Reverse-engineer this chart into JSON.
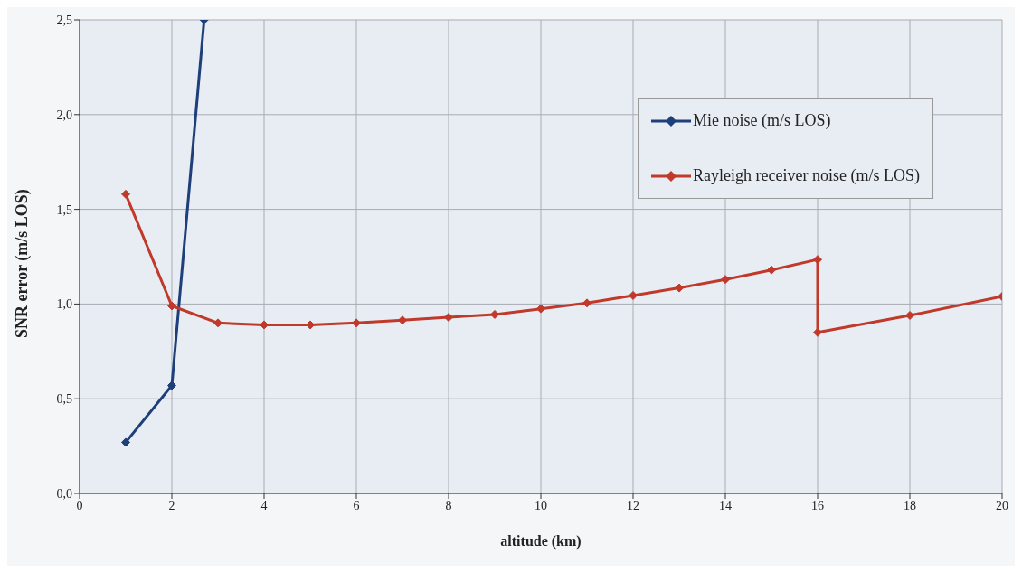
{
  "chart_data": {
    "type": "line",
    "xlabel": "altitude (km)",
    "ylabel": "SNR error (m/s LOS)",
    "xlim": [
      0,
      20
    ],
    "xticks": [
      0,
      2,
      4,
      6,
      8,
      10,
      12,
      14,
      16,
      18,
      20
    ],
    "ylim": [
      0,
      2.5
    ],
    "yticks": [
      {
        "value": 0,
        "label": "0,0"
      },
      {
        "value": 0.5,
        "label": "0,5"
      },
      {
        "value": 1,
        "label": "1,0"
      },
      {
        "value": 1.5,
        "label": "1,5"
      },
      {
        "value": 2,
        "label": "2,0"
      },
      {
        "value": 2.5,
        "label": "2,5"
      }
    ],
    "grid": true,
    "legend": "top right",
    "marker": "diamond",
    "series": [
      {
        "name": "Mie noise (m/s LOS)",
        "color": "#1f3f7a",
        "x": [
          1,
          2,
          2.7
        ],
        "values": [
          0.27,
          0.57,
          2.5
        ]
      },
      {
        "name": "Rayleigh receiver noise (m/s LOS)",
        "color": "#c0392b",
        "x": [
          1,
          2,
          3,
          4,
          5,
          6,
          7,
          8,
          9,
          10,
          11,
          12,
          13,
          14,
          15,
          16,
          16,
          18,
          20
        ],
        "values": [
          1.58,
          0.99,
          0.9,
          0.89,
          0.89,
          0.9,
          0.915,
          0.93,
          0.945,
          0.975,
          1.005,
          1.045,
          1.085,
          1.13,
          1.18,
          1.235,
          0.85,
          0.94,
          1.04
        ]
      }
    ]
  }
}
